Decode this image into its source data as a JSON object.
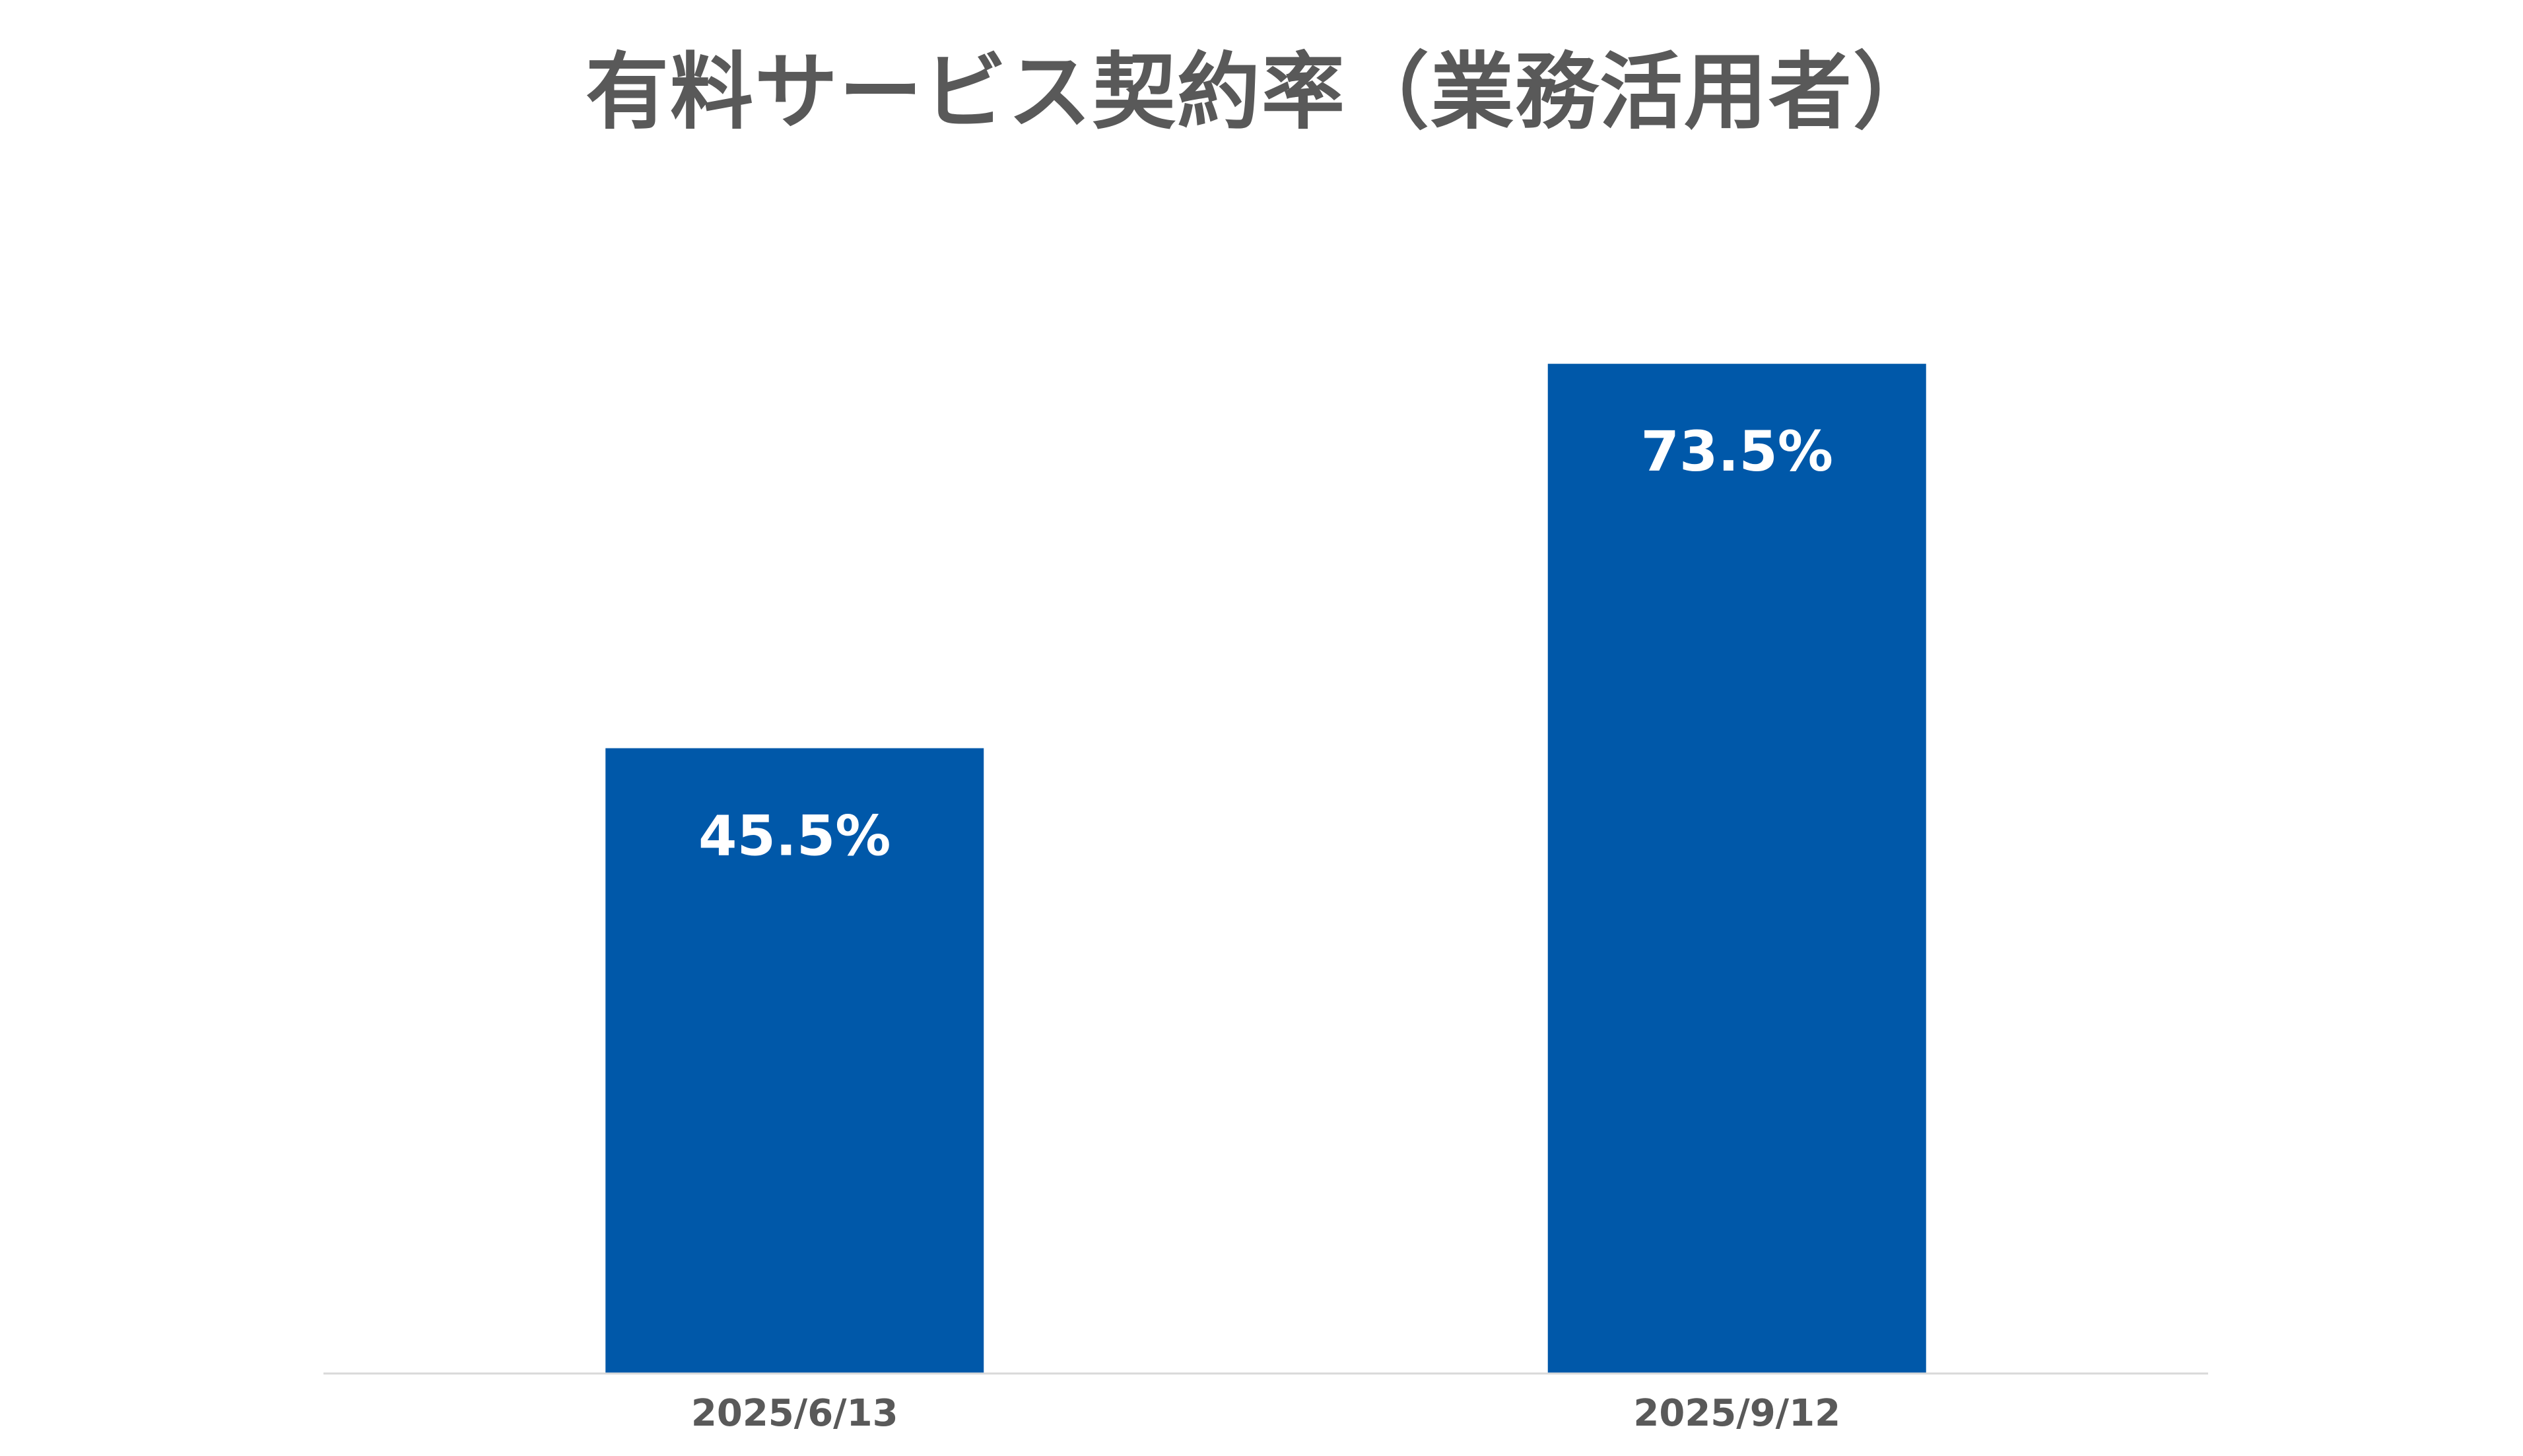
{
  "chart_data": {
    "type": "bar",
    "title": "有料サービス契約率（業務活用者）",
    "categories": [
      "2025/6/13",
      "2025/9/12"
    ],
    "values": [
      45.5,
      73.5
    ],
    "data_labels": [
      "45.5%",
      "73.5%"
    ],
    "ylim": [
      0,
      100
    ],
    "grid": false,
    "legend": "none",
    "bar_color": "#0058A9",
    "data_label_color": "#FFFFFF",
    "axis_label_color": "#595959",
    "axis_line_color": "#D9D9D9"
  }
}
